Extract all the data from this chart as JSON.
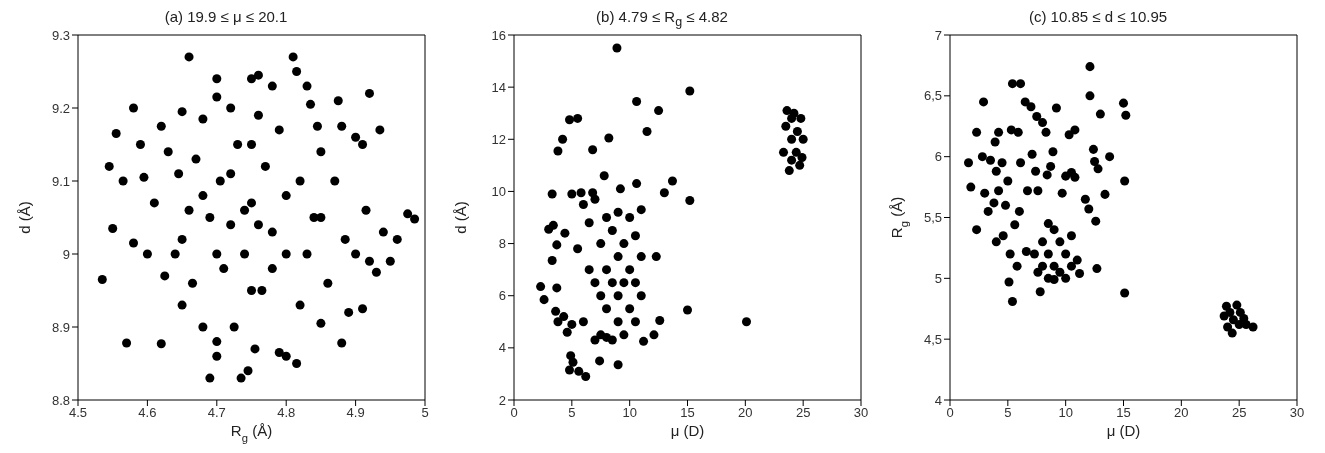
{
  "chart_data": [
    {
      "type": "scatter",
      "title": "(a) 19.9 ≤ μ ≤ 20.1",
      "xlabel": "R$_{g}$ (Å)",
      "ylabel": "d (Å)",
      "xlim": [
        4.5,
        5
      ],
      "ylim": [
        8.8,
        9.3
      ],
      "xticks": [
        4.5,
        4.6,
        4.7,
        4.8,
        4.9,
        5
      ],
      "yticks": [
        8.8,
        8.9,
        9,
        9.1,
        9.2,
        9.3
      ],
      "grid": false,
      "marker": "circle",
      "series": [
        {
          "color": "#000000",
          "x": [
            4.535,
            4.545,
            4.55,
            4.555,
            4.565,
            4.57,
            4.58,
            4.58,
            4.59,
            4.595,
            4.6,
            4.61,
            4.62,
            4.62,
            4.625,
            4.63,
            4.64,
            4.645,
            4.65,
            4.65,
            4.66,
            4.66,
            4.665,
            4.67,
            4.68,
            4.68,
            4.69,
            4.69,
            4.7,
            4.7,
            4.7,
            4.7,
            4.705,
            4.71,
            4.72,
            4.72,
            4.725,
            4.73,
            4.735,
            4.74,
            4.745,
            4.75,
            4.75,
            4.755,
            4.76,
            4.76,
            4.765,
            4.77,
            4.78,
            4.78,
            4.79,
            4.79,
            4.8,
            4.8,
            4.81,
            4.815,
            4.815,
            4.82,
            4.82,
            4.83,
            4.835,
            4.84,
            4.845,
            4.85,
            4.85,
            4.86,
            4.87,
            4.875,
            4.88,
            4.88,
            4.885,
            4.89,
            4.9,
            4.9,
            4.91,
            4.91,
            4.915,
            4.92,
            4.92,
            4.93,
            4.935,
            4.94,
            4.95,
            4.96,
            4.975,
            4.985,
            4.74,
            4.76,
            4.72,
            4.78,
            4.8,
            4.7,
            4.75,
            4.83,
            4.68,
            4.85,
            4.75,
            4.65
          ],
          "values": [
            8.965,
            9.12,
            9.035,
            9.165,
            9.1,
            8.878,
            9.2,
            9.015,
            9.15,
            9.105,
            9.0,
            9.07,
            9.175,
            8.877,
            8.97,
            9.14,
            9.0,
            9.11,
            9.195,
            8.93,
            9.27,
            9.06,
            8.96,
            9.13,
            9.185,
            8.9,
            8.83,
            9.05,
            9.24,
            9.215,
            8.88,
            8.86,
            9.1,
            8.98,
            9.2,
            9.04,
            8.9,
            9.15,
            8.83,
            9.0,
            8.84,
            9.24,
            9.07,
            8.87,
            9.245,
            9.19,
            8.95,
            9.12,
            9.23,
            9.03,
            8.865,
            9.17,
            9.0,
            8.86,
            9.27,
            9.25,
            8.85,
            9.1,
            8.93,
            9.23,
            9.205,
            9.05,
            9.175,
            8.905,
            9.14,
            8.96,
            9.1,
            9.21,
            9.175,
            8.878,
            9.02,
            8.92,
            9.16,
            9.0,
            9.15,
            8.925,
            9.06,
            9.22,
            8.99,
            8.975,
            9.17,
            9.03,
            8.99,
            9.02,
            9.055,
            9.048,
            9.06,
            9.04,
            9.11,
            8.98,
            9.08,
            9.0,
            8.95,
            9.0,
            9.08,
            9.05,
            9.15,
            9.02
          ]
        }
      ]
    },
    {
      "type": "scatter",
      "title": "(b) 4.79 ≤ R$_{g}$ ≤ 4.82",
      "xlabel": "μ (D)",
      "ylabel": "d (Å)",
      "xlim": [
        0,
        30
      ],
      "ylim": [
        2,
        16
      ],
      "xticks": [
        0,
        5,
        10,
        15,
        20,
        25,
        30
      ],
      "yticks": [
        2,
        4,
        6,
        8,
        10,
        12,
        14,
        16
      ],
      "grid": false,
      "marker": "circle",
      "series": [
        {
          "color": "#000000",
          "x": [
            2.3,
            2.6,
            3,
            3.3,
            3.3,
            3.4,
            3.6,
            3.7,
            3.7,
            3.8,
            3.8,
            4.2,
            4.3,
            4.4,
            4.6,
            4.8,
            4.8,
            4.9,
            5,
            5,
            5.1,
            5.5,
            5.5,
            5.6,
            5.8,
            6.2,
            6.8,
            6.8,
            7.4,
            7.8,
            8.2,
            8.9,
            9,
            9.2,
            10.6,
            10.6,
            11.2,
            11.5,
            12.1,
            12.3,
            12.5,
            12.6,
            13,
            13.7,
            15,
            15.2,
            15.2,
            20.1,
            7.5,
            7.5,
            7.5,
            8,
            8,
            8,
            8,
            8.5,
            8.5,
            8.5,
            9,
            9,
            9,
            9,
            9.5,
            9.5,
            9.5,
            10,
            10,
            10,
            10.5,
            10.5,
            10.5,
            11,
            11,
            11,
            6.5,
            6.5,
            6,
            6,
            7,
            7,
            7,
            23.3,
            23.5,
            23.6,
            23.8,
            24,
            24,
            24,
            24.2,
            24.4,
            24.5,
            24.7,
            24.8,
            24.9,
            25
          ],
          "values": [
            6.35,
            5.85,
            8.55,
            7.35,
            9.9,
            8.7,
            5.4,
            6.3,
            7.95,
            5.0,
            11.55,
            12.0,
            5.2,
            8.4,
            4.6,
            12.75,
            3.15,
            3.7,
            4.9,
            9.9,
            3.45,
            12.8,
            7.8,
            3.1,
            9.95,
            2.9,
            11.6,
            9.95,
            3.5,
            10.6,
            12.05,
            15.5,
            3.35,
            10.1,
            13.45,
            10.3,
            4.25,
            12.3,
            4.5,
            7.5,
            13.1,
            5.05,
            9.95,
            10.4,
            5.45,
            13.85,
            9.65,
            5.0,
            4.5,
            6,
            8,
            4.4,
            5.5,
            7,
            9,
            4.3,
            6.5,
            8.5,
            5,
            6,
            7.5,
            9.2,
            4.5,
            6.5,
            8,
            5.5,
            7,
            9,
            5,
            6.5,
            8.3,
            6,
            7.5,
            9.3,
            7,
            8.8,
            5,
            9.5,
            4.3,
            6.5,
            9.7,
            11.5,
            12.5,
            13.1,
            10.8,
            11.2,
            12,
            12.8,
            13,
            11.5,
            12.3,
            11,
            12.8,
            11.3,
            12
          ]
        }
      ]
    },
    {
      "type": "scatter",
      "title": "(c) 10.85 ≤ d ≤ 10.95",
      "xlabel": "μ (D)",
      "ylabel": "R$_{g}$ (Å)",
      "xlim": [
        0,
        30
      ],
      "ylim": [
        4,
        7
      ],
      "xticks": [
        0,
        5,
        10,
        15,
        20,
        25,
        30
      ],
      "yticks": [
        4,
        {
          "value": 4.5,
          "label": "4,5"
        },
        5,
        {
          "value": 5.5,
          "label": "5,5"
        },
        6,
        {
          "value": 6.5,
          "label": "6,5"
        },
        7
      ],
      "grid": false,
      "marker": "circle",
      "series": [
        {
          "color": "#000000",
          "x": [
            1.6,
            1.8,
            2.3,
            2.3,
            2.8,
            2.9,
            3,
            3.3,
            3.5,
            3.8,
            3.9,
            4,
            4,
            4.2,
            4.2,
            4.5,
            4.6,
            4.8,
            5,
            5.1,
            5.2,
            5.3,
            5.4,
            5.4,
            5.6,
            5.8,
            5.9,
            6,
            6.1,
            6.1,
            6.5,
            6.6,
            6.7,
            7,
            7.1,
            7.4,
            7.5,
            7.6,
            7.8,
            8,
            8.3,
            8.4,
            8.7,
            8.9,
            9.2,
            9.7,
            10,
            10.3,
            10.5,
            10.8,
            10.8,
            11.7,
            12,
            12.1,
            12.1,
            12.4,
            12.5,
            12.6,
            12.7,
            12.8,
            13,
            13.4,
            13.8,
            15,
            15.1,
            15.2,
            15.1,
            7.3,
            7.6,
            8,
            8,
            8.5,
            8.5,
            8.5,
            9,
            9,
            9,
            9.5,
            9.5,
            10,
            10,
            10.5,
            10.5,
            11,
            11.2,
            23.7,
            23.9,
            24,
            24.2,
            24.4,
            24.5,
            24.8,
            25,
            25.1,
            25.4,
            25.6,
            26.2
          ],
          "values": [
            5.95,
            5.75,
            5.4,
            6.2,
            6.0,
            6.45,
            5.7,
            5.55,
            5.97,
            5.62,
            6.12,
            5.3,
            5.88,
            6.2,
            5.72,
            5.95,
            5.35,
            5.6,
            5.8,
            4.97,
            5.2,
            6.22,
            6.6,
            4.81,
            5.44,
            5.1,
            6.2,
            5.55,
            6.6,
            5.95,
            6.45,
            5.22,
            5.72,
            6.41,
            6.02,
            5.88,
            6.33,
            5.72,
            4.89,
            6.28,
            6.2,
            5.85,
            5.92,
            6.04,
            6.4,
            5.7,
            5.84,
            6.18,
            5.87,
            5.83,
            6.22,
            5.65,
            5.57,
            6.74,
            6.5,
            6.06,
            5.96,
            5.47,
            5.08,
            5.9,
            6.35,
            5.69,
            6.0,
            6.44,
            5.8,
            6.34,
            4.88,
            5.2,
            5.05,
            5.3,
            5.1,
            5.45,
            5.2,
            5.0,
            5.4,
            5.1,
            4.99,
            5.3,
            5.05,
            5.2,
            5.0,
            5.35,
            5.1,
            5.15,
            5.04,
            4.69,
            4.77,
            4.6,
            4.72,
            4.55,
            4.66,
            4.78,
            4.62,
            4.72,
            4.67,
            4.62,
            4.6
          ]
        }
      ]
    }
  ]
}
